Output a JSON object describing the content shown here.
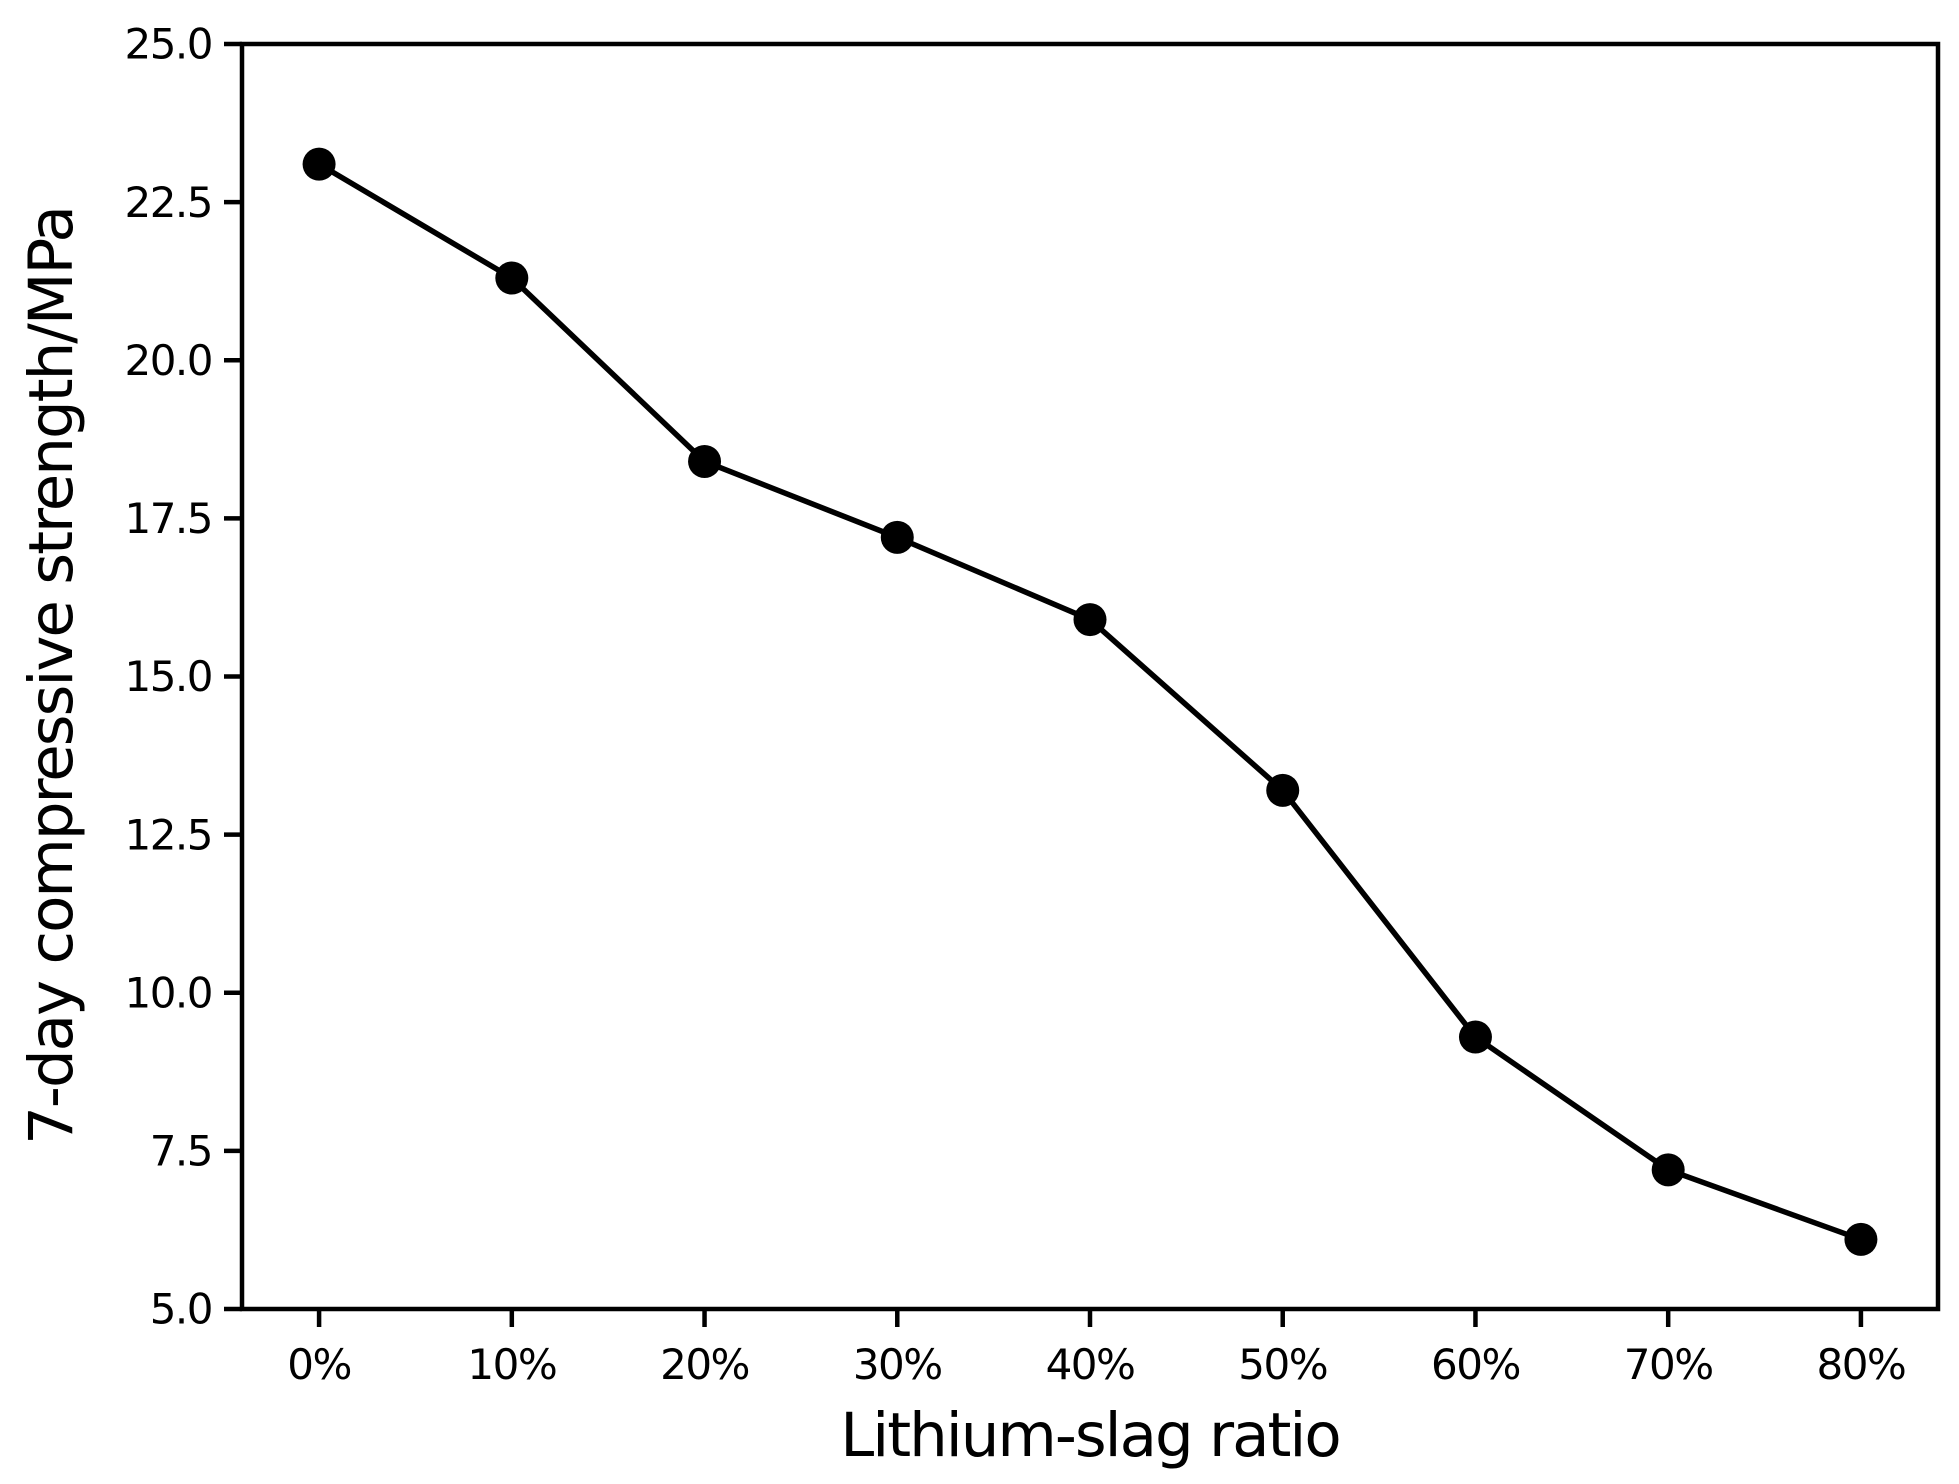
{
  "chart_data": {
    "type": "line",
    "title": "",
    "xlabel": "Lithium-slag ratio",
    "ylabel": "7-day compressive strength/MPa",
    "categories": [
      "0%",
      "10%",
      "20%",
      "30%",
      "40%",
      "50%",
      "60%",
      "70%",
      "80%"
    ],
    "series": [
      {
        "name": "7-day compressive strength",
        "values": [
          23.1,
          21.3,
          18.4,
          17.2,
          15.9,
          13.2,
          9.3,
          7.2,
          6.1
        ]
      }
    ],
    "ylim": [
      5.0,
      25.0
    ],
    "yticks": [
      25.0,
      22.5,
      20.0,
      17.5,
      15.0,
      12.5,
      10.0,
      7.5,
      5.0
    ],
    "ytick_labels": [
      "25.0",
      "22.5",
      "20.0",
      "17.5",
      "15.0",
      "12.5",
      "10.0",
      "7.5",
      "5.0"
    ],
    "grid": false,
    "legend": "none",
    "marker": "circle",
    "line_color": "#000000",
    "marker_color": "#000000",
    "axis_color": "#000000",
    "background_color": "#ffffff"
  }
}
